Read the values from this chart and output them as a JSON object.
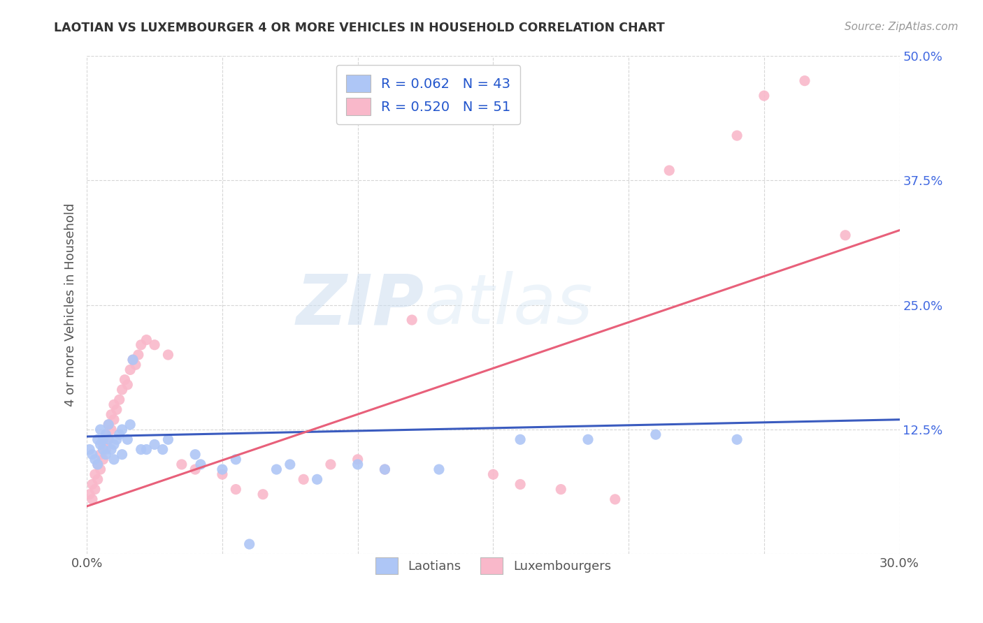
{
  "title": "LAOTIAN VS LUXEMBOURGER 4 OR MORE VEHICLES IN HOUSEHOLD CORRELATION CHART",
  "source": "Source: ZipAtlas.com",
  "ylabel": "4 or more Vehicles in Household",
  "xmin": 0.0,
  "xmax": 0.3,
  "ymin": 0.0,
  "ymax": 0.5,
  "xticks": [
    0.0,
    0.05,
    0.1,
    0.15,
    0.2,
    0.25,
    0.3
  ],
  "xtick_labels": [
    "0.0%",
    "",
    "",
    "",
    "",
    "",
    "30.0%"
  ],
  "yticks": [
    0.0,
    0.125,
    0.25,
    0.375,
    0.5
  ],
  "ytick_labels": [
    "",
    "12.5%",
    "25.0%",
    "37.5%",
    "50.0%"
  ],
  "laotian_color": "#aec6f6",
  "luxembourger_color": "#f9b8ca",
  "laotian_line_color": "#3a5bbf",
  "luxembourger_line_color": "#e8607a",
  "legend_label1": "R = 0.062   N = 43",
  "legend_label2": "R = 0.520   N = 51",
  "legend_labels_bottom": [
    "Laotians",
    "Luxembourgers"
  ],
  "watermark_zip": "ZIP",
  "watermark_atlas": "atlas",
  "background_color": "#ffffff",
  "grid_color": "#cccccc",
  "laotian_scatter": [
    [
      0.001,
      0.105
    ],
    [
      0.002,
      0.1
    ],
    [
      0.003,
      0.095
    ],
    [
      0.004,
      0.09
    ],
    [
      0.004,
      0.115
    ],
    [
      0.005,
      0.11
    ],
    [
      0.005,
      0.125
    ],
    [
      0.006,
      0.105
    ],
    [
      0.006,
      0.115
    ],
    [
      0.007,
      0.1
    ],
    [
      0.007,
      0.12
    ],
    [
      0.008,
      0.115
    ],
    [
      0.008,
      0.13
    ],
    [
      0.009,
      0.105
    ],
    [
      0.01,
      0.095
    ],
    [
      0.01,
      0.11
    ],
    [
      0.011,
      0.115
    ],
    [
      0.012,
      0.12
    ],
    [
      0.013,
      0.1
    ],
    [
      0.013,
      0.125
    ],
    [
      0.015,
      0.115
    ],
    [
      0.016,
      0.13
    ],
    [
      0.017,
      0.195
    ],
    [
      0.02,
      0.105
    ],
    [
      0.022,
      0.105
    ],
    [
      0.025,
      0.11
    ],
    [
      0.028,
      0.105
    ],
    [
      0.03,
      0.115
    ],
    [
      0.04,
      0.1
    ],
    [
      0.042,
      0.09
    ],
    [
      0.05,
      0.085
    ],
    [
      0.055,
      0.095
    ],
    [
      0.06,
      0.01
    ],
    [
      0.07,
      0.085
    ],
    [
      0.075,
      0.09
    ],
    [
      0.085,
      0.075
    ],
    [
      0.1,
      0.09
    ],
    [
      0.11,
      0.085
    ],
    [
      0.13,
      0.085
    ],
    [
      0.16,
      0.115
    ],
    [
      0.185,
      0.115
    ],
    [
      0.21,
      0.12
    ],
    [
      0.24,
      0.115
    ]
  ],
  "luxembourger_scatter": [
    [
      0.001,
      0.06
    ],
    [
      0.002,
      0.055
    ],
    [
      0.002,
      0.07
    ],
    [
      0.003,
      0.065
    ],
    [
      0.003,
      0.08
    ],
    [
      0.004,
      0.075
    ],
    [
      0.004,
      0.09
    ],
    [
      0.005,
      0.085
    ],
    [
      0.005,
      0.1
    ],
    [
      0.006,
      0.095
    ],
    [
      0.006,
      0.11
    ],
    [
      0.007,
      0.105
    ],
    [
      0.007,
      0.12
    ],
    [
      0.008,
      0.115
    ],
    [
      0.008,
      0.13
    ],
    [
      0.009,
      0.125
    ],
    [
      0.009,
      0.14
    ],
    [
      0.01,
      0.135
    ],
    [
      0.01,
      0.15
    ],
    [
      0.011,
      0.145
    ],
    [
      0.012,
      0.155
    ],
    [
      0.013,
      0.165
    ],
    [
      0.014,
      0.175
    ],
    [
      0.015,
      0.17
    ],
    [
      0.016,
      0.185
    ],
    [
      0.017,
      0.195
    ],
    [
      0.018,
      0.19
    ],
    [
      0.019,
      0.2
    ],
    [
      0.02,
      0.21
    ],
    [
      0.022,
      0.215
    ],
    [
      0.025,
      0.21
    ],
    [
      0.03,
      0.2
    ],
    [
      0.035,
      0.09
    ],
    [
      0.04,
      0.085
    ],
    [
      0.05,
      0.08
    ],
    [
      0.055,
      0.065
    ],
    [
      0.065,
      0.06
    ],
    [
      0.08,
      0.075
    ],
    [
      0.09,
      0.09
    ],
    [
      0.1,
      0.095
    ],
    [
      0.11,
      0.085
    ],
    [
      0.12,
      0.235
    ],
    [
      0.15,
      0.08
    ],
    [
      0.16,
      0.07
    ],
    [
      0.175,
      0.065
    ],
    [
      0.195,
      0.055
    ],
    [
      0.215,
      0.385
    ],
    [
      0.24,
      0.42
    ],
    [
      0.25,
      0.46
    ],
    [
      0.265,
      0.475
    ],
    [
      0.28,
      0.32
    ]
  ]
}
